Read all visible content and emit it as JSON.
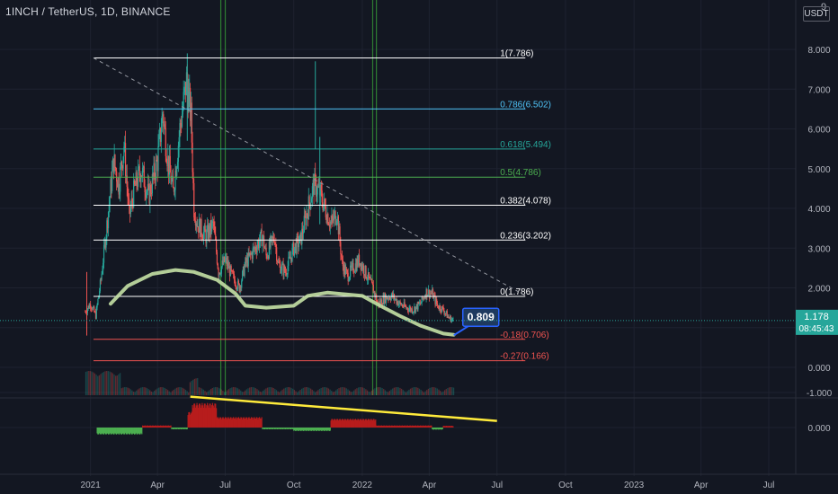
{
  "header": {
    "title": "1INCH / TetherUS, 1D, BINANCE"
  },
  "price_axis": {
    "unit": "USDT",
    "corner_label": "9"
  },
  "colors": {
    "background": "#131722",
    "grid": "#1e2230",
    "up_candle": "#26a69a",
    "down_candle": "#ef5350",
    "fib_1": "#ffffff",
    "fib_0786": "#4fc3f7",
    "fib_0618": "#26a69a",
    "fib_05": "#4caf50",
    "fib_0382": "#ffffff",
    "fib_0236": "#ffffff",
    "fib_0": "#ffffff",
    "fib_neg018": "#ef5350",
    "fib_neg027": "#ef5350",
    "curve": "#c5e1a5",
    "vertical_lines": "#2e7d32",
    "trend_dashed": "#9598a1",
    "osc_support": "#ffeb3b",
    "callout": "#2962ff"
  },
  "chart_data": [
    {
      "type": "candlestick",
      "title": "1INCH / TetherUS, 1D, BINANCE",
      "y_unit": "USDT",
      "ylim": [
        -0.6,
        9.0
      ],
      "x_ticks": [
        "2021",
        "Apr",
        "Jul",
        "Oct",
        "2022",
        "Apr",
        "Jul",
        "Oct",
        "2023",
        "Apr",
        "Jul"
      ],
      "y_ticks": [
        "0.000",
        "1.000",
        "2.000",
        "3.000",
        "4.000",
        "5.000",
        "6.000",
        "7.000",
        "8.000"
      ],
      "current_price": {
        "value": "1.178",
        "countdown": "08:45:43"
      },
      "fib_levels": [
        {
          "label": "1(7.786)",
          "price": 7.786
        },
        {
          "label": "0.786(6.502)",
          "price": 6.502
        },
        {
          "label": "0.618(5.494)",
          "price": 5.494
        },
        {
          "label": "0.5(4.786)",
          "price": 4.786
        },
        {
          "label": "0.382(4.078)",
          "price": 4.078
        },
        {
          "label": "0.236(3.202)",
          "price": 3.202
        },
        {
          "label": "0(1.786)",
          "price": 1.786
        },
        {
          "label": "-0.18(0.706)",
          "price": 0.706
        },
        {
          "label": "-0.27(0.166)",
          "price": 0.166
        }
      ],
      "callout": {
        "label": "0.809",
        "price": 0.809
      },
      "price_path": [
        {
          "date": "2020-12-25",
          "price": 1.4
        },
        {
          "date": "2021-01-01",
          "price": 1.6
        },
        {
          "date": "2021-01-08",
          "price": 1.3
        },
        {
          "date": "2021-01-15",
          "price": 2.2
        },
        {
          "date": "2021-01-22",
          "price": 3.4
        },
        {
          "date": "2021-02-01",
          "price": 5.2
        },
        {
          "date": "2021-02-08",
          "price": 4.6
        },
        {
          "date": "2021-02-15",
          "price": 5.6
        },
        {
          "date": "2021-02-22",
          "price": 3.8
        },
        {
          "date": "2021-03-01",
          "price": 4.5
        },
        {
          "date": "2021-03-10",
          "price": 5.0
        },
        {
          "date": "2021-03-20",
          "price": 4.3
        },
        {
          "date": "2021-04-01",
          "price": 5.2
        },
        {
          "date": "2021-04-08",
          "price": 6.4
        },
        {
          "date": "2021-04-15",
          "price": 5.2
        },
        {
          "date": "2021-04-22",
          "price": 4.4
        },
        {
          "date": "2021-05-01",
          "price": 6.0
        },
        {
          "date": "2021-05-10",
          "price": 7.2
        },
        {
          "date": "2021-05-16",
          "price": 6.3
        },
        {
          "date": "2021-05-20",
          "price": 4.0
        },
        {
          "date": "2021-05-25",
          "price": 3.6
        },
        {
          "date": "2021-06-05",
          "price": 3.3
        },
        {
          "date": "2021-06-15",
          "price": 3.6
        },
        {
          "date": "2021-06-22",
          "price": 2.4
        },
        {
          "date": "2021-07-01",
          "price": 2.7
        },
        {
          "date": "2021-07-10",
          "price": 2.3
        },
        {
          "date": "2021-07-20",
          "price": 2.0
        },
        {
          "date": "2021-07-28",
          "price": 2.6
        },
        {
          "date": "2021-08-10",
          "price": 3.0
        },
        {
          "date": "2021-08-20",
          "price": 3.3
        },
        {
          "date": "2021-08-25",
          "price": 2.8
        },
        {
          "date": "2021-09-05",
          "price": 3.3
        },
        {
          "date": "2021-09-10",
          "price": 2.6
        },
        {
          "date": "2021-09-20",
          "price": 2.4
        },
        {
          "date": "2021-10-01",
          "price": 3.0
        },
        {
          "date": "2021-10-10",
          "price": 3.2
        },
        {
          "date": "2021-10-20",
          "price": 4.0
        },
        {
          "date": "2021-10-28",
          "price": 4.6
        },
        {
          "date": "2021-11-05",
          "price": 4.4
        },
        {
          "date": "2021-11-12",
          "price": 4.0
        },
        {
          "date": "2021-11-20",
          "price": 3.6
        },
        {
          "date": "2021-11-28",
          "price": 3.9
        },
        {
          "date": "2021-12-05",
          "price": 2.6
        },
        {
          "date": "2021-12-12",
          "price": 2.3
        },
        {
          "date": "2021-12-20",
          "price": 2.5
        },
        {
          "date": "2021-12-28",
          "price": 2.7
        },
        {
          "date": "2022-01-05",
          "price": 2.4
        },
        {
          "date": "2022-01-15",
          "price": 2.0
        },
        {
          "date": "2022-01-22",
          "price": 1.6
        },
        {
          "date": "2022-02-01",
          "price": 1.75
        },
        {
          "date": "2022-02-10",
          "price": 1.8
        },
        {
          "date": "2022-02-20",
          "price": 1.6
        },
        {
          "date": "2022-03-01",
          "price": 1.5
        },
        {
          "date": "2022-03-10",
          "price": 1.45
        },
        {
          "date": "2022-03-20",
          "price": 1.6
        },
        {
          "date": "2022-03-28",
          "price": 1.9
        },
        {
          "date": "2022-04-05",
          "price": 1.85
        },
        {
          "date": "2022-04-12",
          "price": 1.55
        },
        {
          "date": "2022-04-20",
          "price": 1.45
        },
        {
          "date": "2022-04-27",
          "price": 1.25
        },
        {
          "date": "2022-05-04",
          "price": 1.18
        }
      ],
      "wicks": [
        {
          "date": "2021-05-11",
          "high": 7.9
        },
        {
          "date": "2021-10-30",
          "high": 7.7
        },
        {
          "date": "2021-11-05",
          "high": 5.8
        },
        {
          "date": "2020-12-27",
          "low": 0.8
        }
      ]
    },
    {
      "type": "histogram",
      "y_ticks": [
        "0.000",
        "-1.000"
      ],
      "ylim": [
        -1.15,
        0.45
      ],
      "segments": [
        {
          "start": "2021-01-10",
          "end": "2021-03-12",
          "value": 0.2
        },
        {
          "start": "2021-03-12",
          "end": "2021-04-20",
          "value": -0.06
        },
        {
          "start": "2021-04-20",
          "end": "2021-05-12",
          "value": 0.05
        },
        {
          "start": "2021-05-12",
          "end": "2021-05-18",
          "value": -0.45
        },
        {
          "start": "2021-05-18",
          "end": "2021-06-20",
          "value": -0.7
        },
        {
          "start": "2021-06-20",
          "end": "2021-08-20",
          "value": -0.3
        },
        {
          "start": "2021-08-20",
          "end": "2021-10-01",
          "value": 0.05
        },
        {
          "start": "2021-10-01",
          "end": "2021-11-20",
          "value": 0.1
        },
        {
          "start": "2021-11-20",
          "end": "2022-01-20",
          "value": -0.25
        },
        {
          "start": "2022-01-20",
          "end": "2022-04-05",
          "value": -0.06
        },
        {
          "start": "2022-04-05",
          "end": "2022-04-20",
          "value": 0.06
        },
        {
          "start": "2022-04-20",
          "end": "2022-05-04",
          "value": -0.05
        }
      ],
      "support_line": [
        {
          "date": "2021-05-15",
          "value": -0.88
        },
        {
          "date": "2022-07-01",
          "value": -0.19
        }
      ]
    }
  ]
}
